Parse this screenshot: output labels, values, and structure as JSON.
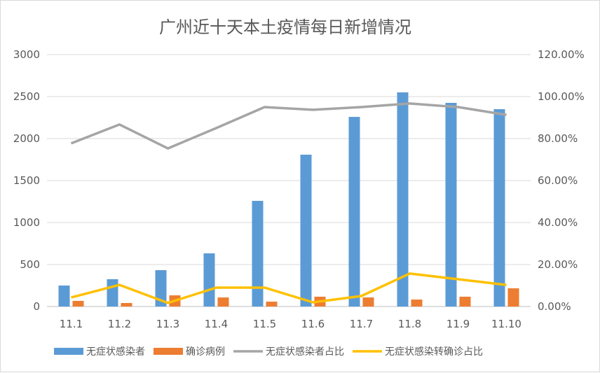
{
  "chart_data": {
    "type": "bar",
    "title": "广州近十天本土疫情每日新增情况",
    "categories": [
      "11.1",
      "11.2",
      "11.3",
      "11.4",
      "11.5",
      "11.6",
      "11.7",
      "11.8",
      "11.9",
      "11.10"
    ],
    "left_axis": {
      "ylim": [
        0,
        3000
      ],
      "ticks": [
        "0",
        "500",
        "1000",
        "1500",
        "2000",
        "2500",
        "3000"
      ]
    },
    "right_axis": {
      "ylim": [
        0,
        1.2
      ],
      "ticks": [
        "0.00%",
        "20.00%",
        "40.00%",
        "60.00%",
        "80.00%",
        "100.00%",
        "120.00%"
      ]
    },
    "grid": true,
    "legend": "bottom",
    "series": [
      {
        "name": "无症状感染者",
        "type": "bar",
        "axis": "left",
        "color": "#5B9BD5",
        "values": [
          250,
          325,
          433,
          633,
          1258,
          1808,
          2258,
          2550,
          2425,
          2350
        ]
      },
      {
        "name": "确诊病例",
        "type": "bar",
        "axis": "left",
        "color": "#ED7D31",
        "values": [
          67,
          42,
          133,
          108,
          58,
          117,
          108,
          83,
          117,
          217
        ]
      },
      {
        "name": "无症状感染者占比",
        "type": "line",
        "axis": "right",
        "color": "#A5A5A5",
        "values": [
          0.777,
          0.867,
          0.753,
          0.85,
          0.95,
          0.937,
          0.95,
          0.967,
          0.95,
          0.913
        ]
      },
      {
        "name": "无症状感染转确诊占比",
        "type": "line",
        "axis": "right",
        "color": "#FFC000",
        "values": [
          0.043,
          0.103,
          0.017,
          0.09,
          0.09,
          0.02,
          0.05,
          0.157,
          0.13,
          0.103
        ]
      }
    ]
  }
}
